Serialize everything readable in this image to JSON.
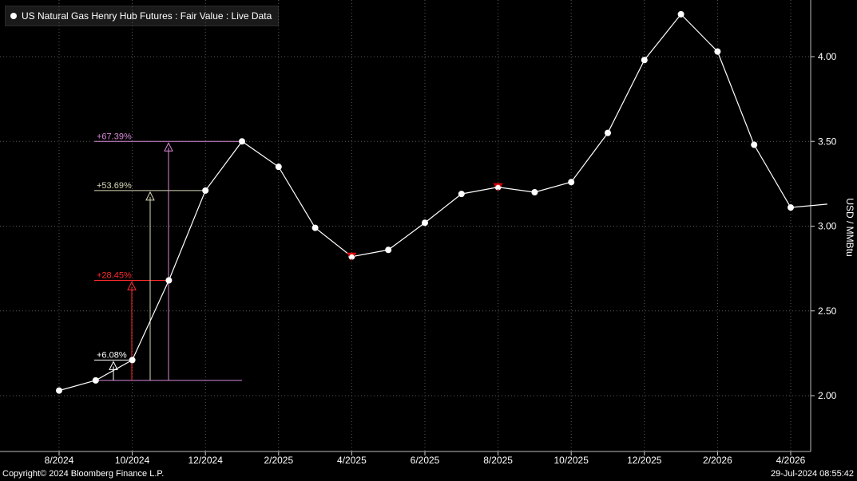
{
  "chart_data": {
    "type": "line",
    "title": "US Natural Gas Henry Hub Futures : Fair Value : Live Data",
    "ylabel": "USD / MMBtu",
    "ylim": [
      1.65,
      4.3
    ],
    "y_ticks": [
      "2.00",
      "2.50",
      "3.00",
      "3.50",
      "4.00"
    ],
    "x_tick_labels": [
      "8/2024",
      "10/2024",
      "12/2024",
      "2/2025",
      "4/2025",
      "6/2025",
      "8/2025",
      "10/2025",
      "12/2025",
      "2/2026",
      "4/2026"
    ],
    "series": [
      {
        "name": "US Natural Gas Henry Hub Futures",
        "x": [
          "8/2024",
          "9/2024",
          "10/2024",
          "11/2024",
          "12/2024",
          "1/2025",
          "2/2025",
          "3/2025",
          "4/2025",
          "5/2025",
          "6/2025",
          "7/2025",
          "8/2025",
          "9/2025",
          "10/2025",
          "11/2025",
          "12/2025",
          "1/2026",
          "2/2026",
          "3/2026",
          "4/2026",
          "5/2026"
        ],
        "values": [
          2.03,
          2.09,
          2.21,
          2.68,
          3.21,
          3.5,
          3.35,
          2.99,
          2.82,
          2.86,
          3.02,
          3.19,
          3.23,
          3.2,
          3.26,
          3.55,
          3.98,
          4.25,
          4.03,
          3.48,
          3.11,
          3.13
        ]
      }
    ],
    "markers": [
      {
        "x": "4/2025",
        "value": 2.82,
        "kind": "low"
      },
      {
        "x": "8/2025",
        "value": 3.23,
        "kind": "high"
      }
    ],
    "annotations": [
      {
        "label": "+6.08%",
        "color": "#ffffff",
        "to": "10/2024",
        "from": "9/2024"
      },
      {
        "label": "+28.45%",
        "color": "#ff2a2a",
        "to": "11/2024",
        "from": "9/2024"
      },
      {
        "label": "+53.69%",
        "color": "#d9d9b8",
        "to": "12/2024",
        "from": "9/2024"
      },
      {
        "label": "+67.39%",
        "color": "#d98ad9",
        "to": "1/2025",
        "from": "9/2024"
      }
    ],
    "grid": true
  },
  "footer": {
    "copyright": "Copyright© 2024 Bloomberg Finance L.P.",
    "timestamp": "29-Jul-2024 08:55:42"
  }
}
